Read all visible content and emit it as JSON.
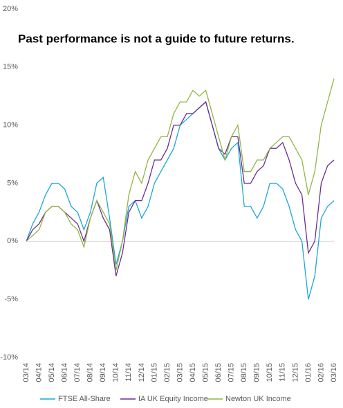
{
  "chart_data": {
    "type": "line",
    "title": "Past performance is not a guide to future returns.",
    "categories": [
      "03/14",
      null,
      "04/14",
      null,
      "05/14",
      null,
      "06/14",
      null,
      "07/14",
      null,
      "08/14",
      null,
      "09/14",
      null,
      "10/14",
      null,
      "11/14",
      null,
      "12/14",
      null,
      "01/15",
      null,
      "02/15",
      null,
      "03/15",
      null,
      "04/15",
      null,
      "05/15",
      null,
      "06/15",
      null,
      "07/15",
      null,
      "08/15",
      null,
      "09/15",
      null,
      "10/15",
      null,
      "11/15",
      null,
      "12/15",
      null,
      "01/16",
      null,
      "02/16",
      null,
      "03/16"
    ],
    "series": [
      {
        "name": "FTSE All-Share",
        "color": "#1aa7d8",
        "values": [
          0,
          1.5,
          2.5,
          4,
          5,
          5,
          4.5,
          3,
          2.5,
          1,
          2.5,
          5,
          5.5,
          2,
          -2,
          0,
          3,
          3.5,
          2,
          3,
          5,
          6,
          7,
          8,
          10,
          10.5,
          11,
          11.5,
          12,
          10,
          8,
          7,
          8,
          8.5,
          3,
          3,
          2,
          3,
          5,
          5,
          4.5,
          3,
          1,
          0,
          -5,
          -3,
          2,
          3,
          3.5
        ]
      },
      {
        "name": "IA UK Equity Income",
        "color": "#6b2c91",
        "values": [
          0,
          1,
          1.5,
          2.5,
          3,
          3,
          2.5,
          2,
          1.5,
          0,
          2,
          3.5,
          2,
          1,
          -3,
          -1,
          2.5,
          3.5,
          3.5,
          5,
          7,
          7,
          8,
          10,
          10,
          11,
          11,
          11.5,
          12,
          10,
          8,
          7.5,
          9,
          9,
          5,
          5,
          6,
          6.5,
          8,
          8,
          8.5,
          7,
          5,
          4,
          -1,
          0,
          5,
          6.5,
          7
        ]
      },
      {
        "name": "Newton UK Income",
        "color": "#92b542",
        "values": [
          0,
          0.5,
          1,
          2.5,
          3,
          3,
          2.5,
          1.5,
          1,
          -0.5,
          2,
          3.5,
          2.5,
          1.5,
          -2.5,
          0,
          4,
          6,
          5,
          7,
          8,
          9,
          9,
          11,
          12,
          12,
          13,
          12.5,
          13,
          11,
          9,
          7,
          9,
          10,
          6,
          6,
          7,
          7,
          8,
          8.5,
          9,
          9,
          8,
          7,
          4,
          6,
          10,
          12,
          14
        ]
      }
    ],
    "ylim": [
      -10,
      20
    ],
    "yticks": [
      {
        "value": -10,
        "label": "-10%"
      },
      {
        "value": -5,
        "label": "-5%"
      },
      {
        "value": 0,
        "label": "0%"
      },
      {
        "value": 5,
        "label": "5%"
      },
      {
        "value": 10,
        "label": "10%"
      },
      {
        "value": 15,
        "label": "15%"
      },
      {
        "value": 20,
        "label": "20%"
      }
    ]
  }
}
